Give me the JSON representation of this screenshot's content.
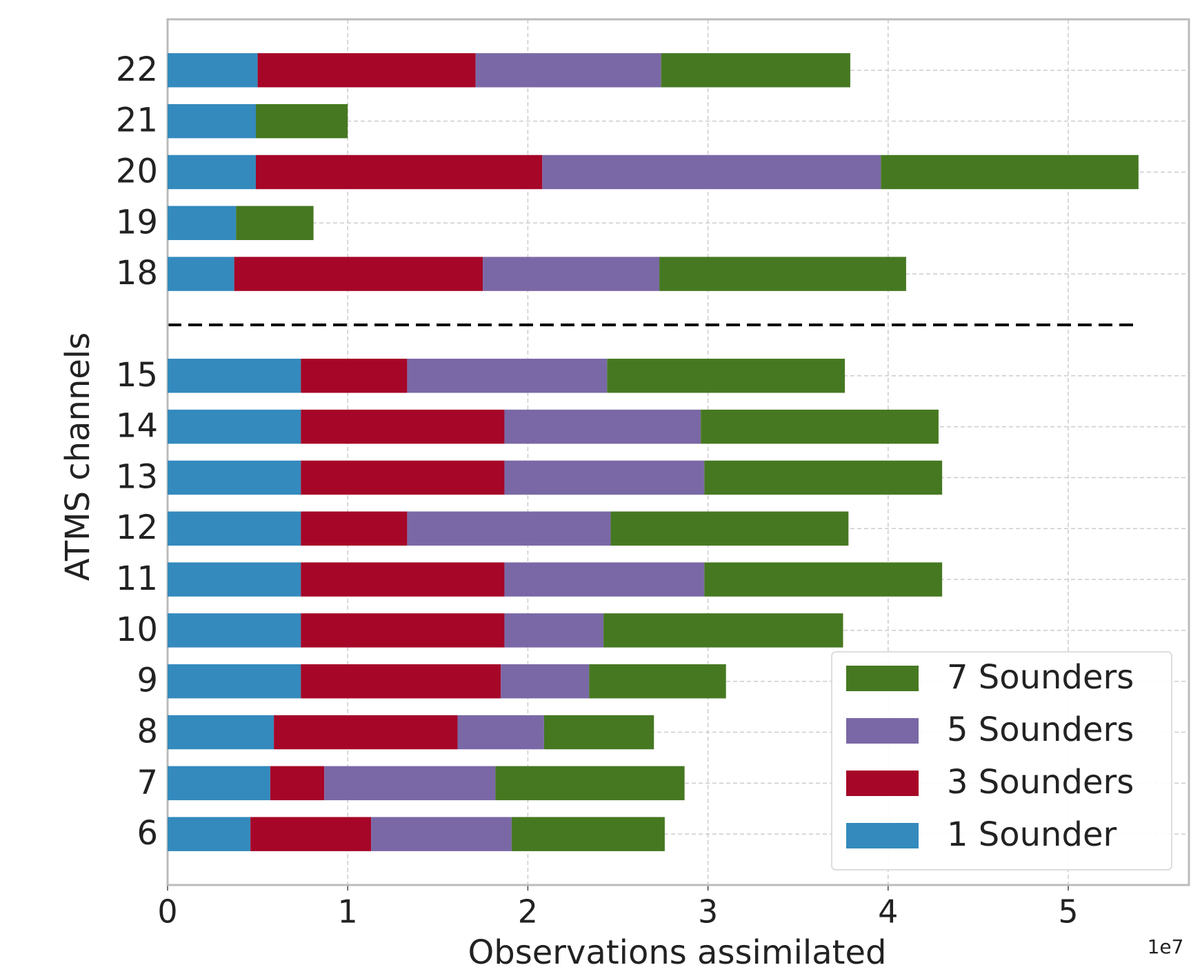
{
  "chart_data": {
    "type": "stacked-barh",
    "x_label": "Observations assimilated",
    "y_label": "ATMS channels",
    "x_offset_label": "1e7",
    "categories": [
      "22",
      "21",
      "20",
      "19",
      "18",
      null,
      "15",
      "14",
      "13",
      "12",
      "11",
      "10",
      "9",
      "8",
      "7",
      "6"
    ],
    "series": [
      {
        "name": "1 Sounder",
        "color": "#348abd",
        "values": [
          0.5,
          0.49,
          0.49,
          0.38,
          0.37,
          null,
          0.74,
          0.74,
          0.74,
          0.74,
          0.74,
          0.74,
          0.74,
          0.59,
          0.57,
          0.46
        ]
      },
      {
        "name": "3 Sounders",
        "color": "#a60628",
        "values": [
          1.21,
          null,
          1.59,
          null,
          1.38,
          null,
          0.59,
          1.13,
          1.13,
          0.59,
          1.13,
          1.13,
          1.11,
          1.02,
          0.3,
          0.67
        ]
      },
      {
        "name": "5 Sounders",
        "color": "#7a68a6",
        "values": [
          1.03,
          null,
          1.88,
          null,
          0.98,
          null,
          1.11,
          1.09,
          1.11,
          1.13,
          1.11,
          0.55,
          0.49,
          0.48,
          0.95,
          0.78
        ]
      },
      {
        "name": "7 Sounders",
        "color": "#467821",
        "values": [
          1.05,
          0.51,
          1.43,
          0.43,
          1.37,
          null,
          1.32,
          1.32,
          1.32,
          1.32,
          1.32,
          1.33,
          0.76,
          0.61,
          1.05,
          0.85
        ]
      }
    ],
    "xlim": [
      0,
      5.67
    ],
    "xticks": [
      0,
      1,
      2,
      3,
      4,
      5
    ],
    "grid": true,
    "legend": "lower right"
  }
}
